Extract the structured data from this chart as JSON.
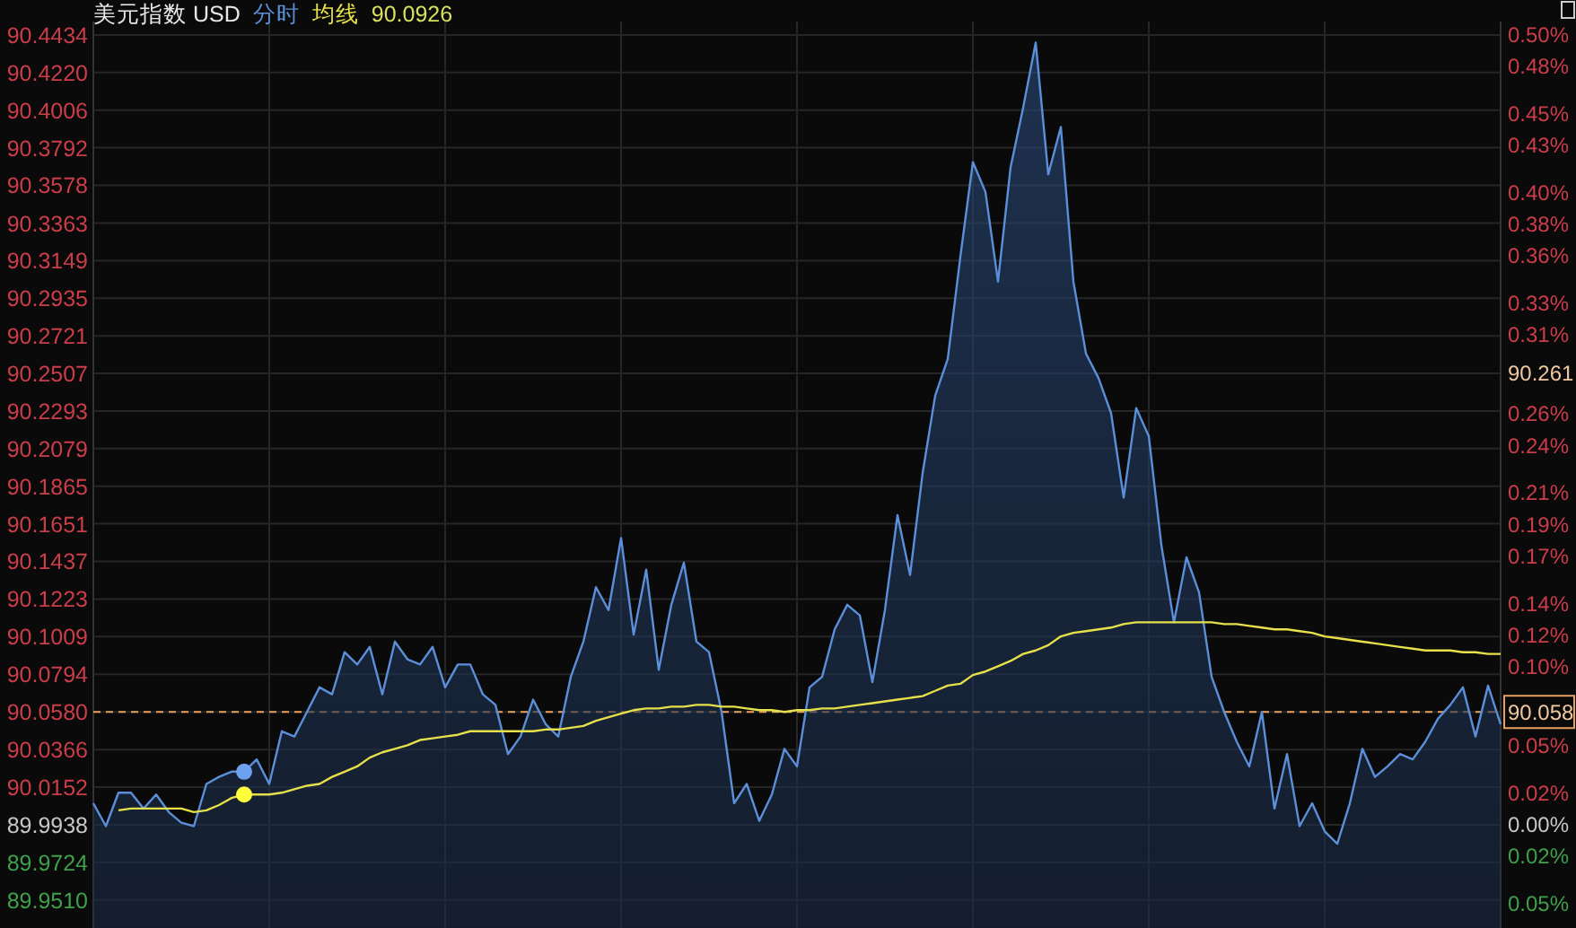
{
  "chart_data": {
    "type": "area",
    "title": "美元指数 USD",
    "grid": true,
    "tick_labels": "y",
    "annotations": [
      "90.0926",
      "90.261"
    ],
    "categories": [
      null,
      null,
      null,
      null,
      null,
      null,
      null,
      null,
      null,
      null,
      null,
      null,
      null,
      null,
      null,
      null,
      null,
      null,
      null,
      null,
      null,
      null,
      null,
      null,
      null,
      null,
      null,
      null,
      null,
      null,
      null,
      null,
      null,
      null,
      null,
      null,
      null,
      null,
      null,
      null,
      null,
      null,
      null,
      null,
      null,
      null,
      null,
      null,
      null,
      null,
      null,
      null,
      null,
      null,
      null,
      null,
      null,
      null,
      null,
      null,
      null,
      null,
      null,
      null,
      null,
      null,
      null,
      null,
      null,
      null,
      null,
      null,
      null,
      null,
      null,
      null,
      null,
      null,
      null,
      null,
      null,
      null,
      null,
      null,
      null,
      null,
      null,
      null,
      null,
      null,
      null,
      null,
      null,
      null,
      null,
      null,
      null,
      null,
      null,
      null,
      null,
      null,
      null,
      null,
      null,
      null,
      null,
      null,
      null,
      null,
      null,
      null,
      null
    ],
    "ylim": [
      89.935,
      90.451
    ],
    "yticks": [
      90.4434,
      {
        "value": 90.422,
        "label": "90.4220"
      },
      90.4006,
      90.3792,
      90.3578,
      90.3363,
      90.3149,
      90.2935,
      90.2721,
      90.2507,
      90.2293,
      90.2079,
      90.1865,
      90.1651,
      90.1437,
      90.1223,
      90.1009,
      90.0794,
      {
        "value": 90.058,
        "label": "90.0580"
      },
      90.0366,
      90.0152,
      89.9938,
      89.9724,
      {
        "value": 89.951,
        "label": "89.9510"
      }
    ],
    "y2lim": [
      -0.0659,
      0.5079
    ],
    "y2ticks": [
      {
        "value": 0.5,
        "label": "0.50%"
      },
      {
        "value": 0.48,
        "label": "0.48%"
      },
      {
        "value": 0.45,
        "label": "0.45%"
      },
      {
        "value": 0.43,
        "label": "0.43%"
      },
      {
        "value": 0.4,
        "label": "0.40%"
      },
      {
        "value": 0.38,
        "label": "0.38%"
      },
      {
        "value": 0.36,
        "label": "0.36%"
      },
      {
        "value": 0.33,
        "label": "0.33%"
      },
      {
        "value": 0.31,
        "label": "0.31%"
      },
      {
        "value": 0.26,
        "label": "0.26%"
      },
      {
        "value": 0.24,
        "label": "0.24%"
      },
      {
        "value": 0.21,
        "label": "0.21%"
      },
      {
        "value": 0.19,
        "label": "0.19%"
      },
      {
        "value": 0.17,
        "label": "0.17%"
      },
      {
        "value": 0.14,
        "label": "0.14%"
      },
      {
        "value": 0.12,
        "label": "0.12%"
      },
      {
        "value": 0.1,
        "label": "0.10%"
      },
      {
        "value": 0.05,
        "label": "0.05%"
      },
      {
        "value": 0.02,
        "label": "0.02%"
      },
      {
        "value": 0,
        "label": "0.00%"
      },
      {
        "value": -0.02,
        "label": "0.02%"
      },
      {
        "value": -0.05,
        "label": "0.05%"
      }
    ],
    "ref_lines": [
      {
        "axis": "y",
        "value": 90.058,
        "label": "90.058",
        "color": "#e8a060",
        "line_style": "dashed"
      }
    ],
    "series": [
      {
        "name": "分时",
        "color": "#5b8fd9",
        "values": [
          90.006,
          89.993,
          90.012,
          90.012,
          90.003,
          90.011,
          90.001,
          89.995,
          89.993,
          90.017,
          90.021,
          90.024,
          90.024,
          90.031,
          90.017,
          90.047,
          90.044,
          90.058,
          90.072,
          90.068,
          90.092,
          90.085,
          90.095,
          90.068,
          90.098,
          90.088,
          90.085,
          90.095,
          90.072,
          90.085,
          90.085,
          90.068,
          90.062,
          90.034,
          90.044,
          90.065,
          90.051,
          90.044,
          90.078,
          90.098,
          90.129,
          90.116,
          90.157,
          90.102,
          90.139,
          90.082,
          90.119,
          90.143,
          90.098,
          90.092,
          90.058,
          90.006,
          90.017,
          89.996,
          90.011,
          90.037,
          90.027,
          90.072,
          90.078,
          90.105,
          90.119,
          90.113,
          90.075,
          90.116,
          90.17,
          90.136,
          90.194,
          90.238,
          90.259,
          90.317,
          90.371,
          90.354,
          90.303,
          90.368,
          90.402,
          90.439,
          90.364,
          90.391,
          90.303,
          90.262,
          90.248,
          90.228,
          90.18,
          90.231,
          90.215,
          90.153,
          90.109,
          90.146,
          90.126,
          90.078,
          90.058,
          90.041,
          90.027,
          90.058,
          90.003,
          90.034,
          89.993,
          90.006,
          89.99,
          89.983,
          90.006,
          90.037,
          90.021,
          90.027,
          90.034,
          90.031,
          90.041,
          90.054,
          90.062,
          90.072,
          90.044,
          90.073,
          90.051
        ]
      },
      {
        "name": "均线",
        "type": "line",
        "color": "#e6e04a",
        "values": [
          null,
          null,
          90.002,
          90.003,
          90.003,
          90.003,
          90.003,
          90.003,
          90.001,
          90.002,
          90.005,
          90.009,
          90.011,
          90.011,
          90.011,
          90.012,
          90.014,
          90.016,
          90.017,
          90.021,
          90.024,
          90.027,
          90.032,
          90.035,
          90.037,
          90.039,
          90.042,
          90.043,
          90.044,
          90.045,
          90.047,
          90.047,
          90.047,
          90.047,
          90.047,
          90.047,
          90.048,
          90.048,
          90.049,
          90.05,
          90.053,
          90.055,
          90.057,
          90.059,
          90.06,
          90.06,
          90.061,
          90.061,
          90.062,
          90.062,
          90.061,
          90.061,
          90.06,
          90.059,
          90.059,
          90.058,
          90.059,
          90.059,
          90.06,
          90.06,
          90.061,
          90.062,
          90.063,
          90.064,
          90.065,
          90.066,
          90.067,
          90.07,
          90.073,
          90.074,
          90.079,
          90.081,
          90.084,
          90.087,
          90.091,
          90.093,
          90.096,
          90.101,
          90.103,
          90.104,
          90.105,
          90.106,
          90.108,
          90.109,
          90.109,
          90.109,
          90.109,
          90.109,
          90.109,
          90.109,
          90.108,
          90.108,
          90.107,
          90.106,
          90.105,
          90.105,
          90.104,
          90.103,
          90.101,
          90.1,
          90.099,
          90.098,
          90.097,
          90.096,
          90.095,
          90.094,
          90.093,
          90.093,
          90.093,
          90.092,
          90.092,
          90.091,
          90.091
        ]
      },
      {
        "type": "scatter",
        "color": "#6ea0f0",
        "values": [
          null,
          null,
          null,
          null,
          null,
          null,
          null,
          null,
          null,
          null,
          null,
          null,
          90.024,
          null,
          null,
          null,
          null,
          null,
          null,
          null,
          null,
          null,
          null,
          null,
          null,
          null,
          null,
          null,
          null,
          null,
          null,
          null,
          null,
          null,
          null,
          null,
          null,
          null,
          null,
          null,
          null,
          null,
          null,
          null,
          null,
          null,
          null,
          null,
          null,
          null,
          null,
          null,
          null,
          null,
          null,
          null,
          null,
          null,
          null,
          null,
          null,
          null,
          null,
          null,
          null,
          null,
          null,
          null,
          null,
          null,
          null,
          null,
          null,
          null,
          null,
          null,
          null,
          null,
          null,
          null,
          null,
          null,
          null,
          null,
          null,
          null,
          null,
          null,
          null,
          null,
          null,
          null,
          null,
          null,
          null,
          null,
          null,
          null,
          null,
          null,
          null,
          null,
          null,
          null,
          null,
          null,
          null,
          null,
          null,
          null,
          null,
          null,
          null
        ]
      },
      {
        "type": "scatter",
        "color": "#ffff3c",
        "values": [
          null,
          null,
          null,
          null,
          null,
          null,
          null,
          null,
          null,
          null,
          null,
          null,
          90.011,
          null,
          null,
          null,
          null,
          null,
          null,
          null,
          null,
          null,
          null,
          null,
          null,
          null,
          null,
          null,
          null,
          null,
          null,
          null,
          null,
          null,
          null,
          null,
          null,
          null,
          null,
          null,
          null,
          null,
          null,
          null,
          null,
          null,
          null,
          null,
          null,
          null,
          null,
          null,
          null,
          null,
          null,
          null,
          null,
          null,
          null,
          null,
          null,
          null,
          null,
          null,
          null,
          null,
          null,
          null,
          null,
          null,
          null,
          null,
          null,
          null,
          null,
          null,
          null,
          null,
          null,
          null,
          null,
          null,
          null,
          null,
          null,
          null,
          null,
          null,
          null,
          null,
          null,
          null,
          null,
          null,
          null,
          null,
          null,
          null,
          null,
          null,
          null,
          null,
          null,
          null,
          null,
          null,
          null,
          null,
          null,
          null,
          null,
          null,
          null
        ]
      }
    ]
  }
}
